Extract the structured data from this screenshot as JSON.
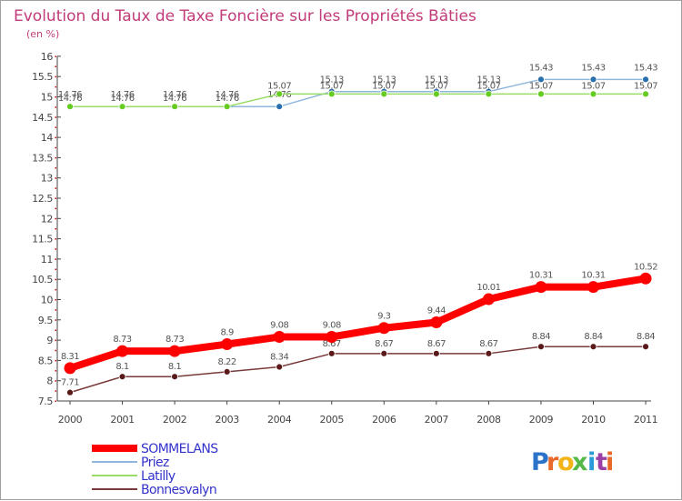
{
  "chart_data": {
    "type": "line",
    "title": "Evolution du Taux de Taxe Foncière sur les Propriétés Bâties",
    "subtitle": "(en %)",
    "xlabel": "",
    "ylabel": "(en %)",
    "ylim": [
      7.5,
      16
    ],
    "yticks": [
      "7.5",
      "8",
      "8.5",
      "9",
      "9.5",
      "10",
      "10.5",
      "11",
      "11.5",
      "12",
      "12.5",
      "13",
      "13.5",
      "14",
      "14.5",
      "15",
      "15.5",
      "16"
    ],
    "categories": [
      "2000",
      "2001",
      "2002",
      "2003",
      "2004",
      "2005",
      "2006",
      "2007",
      "2008",
      "2009",
      "2010",
      "2011"
    ],
    "grid": false,
    "legend_position": "bottom-left",
    "series": [
      {
        "name": "SOMMELANS",
        "color": "#ff0000",
        "marker_color": "#ff0000",
        "values": [
          8.31,
          8.73,
          8.73,
          8.9,
          9.08,
          9.08,
          9.3,
          9.44,
          10.01,
          10.31,
          10.31,
          10.52
        ],
        "labels": [
          "8.31",
          "8.73",
          "8.73",
          "8.9",
          "9.08",
          "9.08",
          "9.3",
          "9.44",
          "10.01",
          "10.31",
          "10.31",
          "10.52"
        ]
      },
      {
        "name": "Priez",
        "color": "#8fb7dd",
        "marker_color": "#2a6fad",
        "values": [
          14.76,
          14.76,
          14.76,
          14.76,
          14.76,
          15.13,
          15.13,
          15.13,
          15.13,
          15.43,
          15.43,
          15.43
        ],
        "labels": [
          "14.76",
          "14.76",
          "14.76",
          "14.76",
          "14.76",
          "15.13",
          "15.13",
          "15.13",
          "15.13",
          "15.43",
          "15.43",
          "15.43"
        ]
      },
      {
        "name": "Latilly",
        "color": "#99dd66",
        "marker_color": "#66cc22",
        "values": [
          14.76,
          14.76,
          14.76,
          14.76,
          15.07,
          15.07,
          15.07,
          15.07,
          15.07,
          15.07,
          15.07,
          15.07
        ],
        "labels": [
          "14.76",
          "14.76",
          "14.76",
          "14.76",
          "15.07",
          "15.07",
          "15.07",
          "15.07",
          "15.07",
          "15.07",
          "15.07",
          "15.07"
        ]
      },
      {
        "name": "Bonnesvalyn",
        "color": "#7a3a3a",
        "marker_color": "#5a1a1a",
        "values": [
          7.71,
          8.1,
          8.1,
          8.22,
          8.34,
          8.67,
          8.67,
          8.67,
          8.67,
          8.84,
          8.84,
          8.84
        ],
        "labels": [
          "7.71",
          "8.1",
          "8.1",
          "8.22",
          "8.34",
          "8.67",
          "8.67",
          "8.67",
          "8.67",
          "8.84",
          "8.84",
          "8.84"
        ]
      }
    ]
  },
  "legend": {
    "items": [
      {
        "label": "SOMMELANS",
        "color": "#ff0000",
        "text_color": "#3333cc"
      },
      {
        "label": "Priez",
        "color": "#8fb7dd",
        "text_color": "#3333cc"
      },
      {
        "label": "Latilly",
        "color": "#99dd66",
        "text_color": "#3333cc"
      },
      {
        "label": "Bonnesvalyn",
        "color": "#7a3a3a",
        "text_color": "#3333cc"
      }
    ]
  },
  "logo": {
    "text": "Proxiti",
    "letters": [
      {
        "ch": "P",
        "color": "#2a73c8"
      },
      {
        "ch": "r",
        "color": "#e8692a"
      },
      {
        "ch": "o",
        "color": "#f2b418"
      },
      {
        "ch": "x",
        "color": "#56b848"
      },
      {
        "ch": "i",
        "color": "#2a9bd8"
      },
      {
        "ch": "t",
        "color": "#9b3fa6"
      },
      {
        "ch": "i",
        "color": "#e8692a"
      }
    ]
  },
  "colors": {
    "axis": "#444444",
    "title": "#c23b7a",
    "axis_dot": "#cc0000"
  }
}
